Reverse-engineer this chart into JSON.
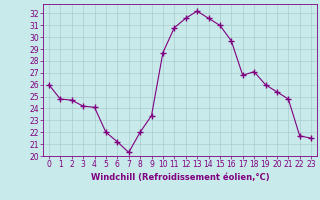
{
  "x": [
    0,
    1,
    2,
    3,
    4,
    5,
    6,
    7,
    8,
    9,
    10,
    11,
    12,
    13,
    14,
    15,
    16,
    17,
    18,
    19,
    20,
    21,
    22,
    23
  ],
  "y": [
    26.0,
    24.8,
    24.7,
    24.2,
    24.1,
    22.0,
    21.2,
    20.3,
    22.0,
    23.4,
    28.7,
    30.8,
    31.6,
    32.2,
    31.6,
    31.0,
    29.7,
    26.8,
    27.1,
    26.0,
    25.4,
    24.8,
    21.7,
    21.5
  ],
  "line_color": "#800080",
  "marker": "+",
  "marker_size": 4,
  "bg_color": "#c8eaea",
  "grid_color": "#aacccc",
  "xlabel": "Windchill (Refroidissement éolien,°C)",
  "ylabel": "",
  "xlim": [
    -0.5,
    23.5
  ],
  "ylim": [
    20,
    32.8
  ],
  "yticks": [
    20,
    21,
    22,
    23,
    24,
    25,
    26,
    27,
    28,
    29,
    30,
    31,
    32
  ],
  "xticks": [
    0,
    1,
    2,
    3,
    4,
    5,
    6,
    7,
    8,
    9,
    10,
    11,
    12,
    13,
    14,
    15,
    16,
    17,
    18,
    19,
    20,
    21,
    22,
    23
  ],
  "label_color": "#800080",
  "tick_fontsize": 5.5,
  "xlabel_fontsize": 6.0
}
